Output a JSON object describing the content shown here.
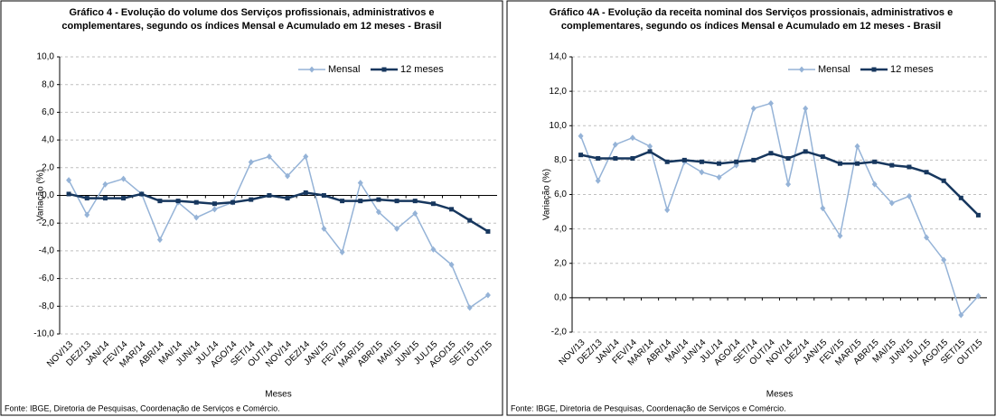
{
  "chart_data": [
    {
      "type": "line",
      "title": [
        "Gráfico 4 - Evolução do volume dos Serviços profissionais, administrativos e",
        "complementares, segundo os índices Mensal e Acumulado em 12 meses - Brasil"
      ],
      "ylabel": "Variação (%)",
      "xlabel": "Meses",
      "source": "Fonte: IBGE, Diretoria de Pesquisas, Coordenação de Serviços e Comércio.",
      "categories": [
        "NOV/13",
        "DEZ/13",
        "JAN/14",
        "FEV/14",
        "MAR/14",
        "ABR/14",
        "MAI/14",
        "JUN/14",
        "JUL/14",
        "AGO/14",
        "SET/14",
        "OUT/14",
        "NOV/14",
        "DEZ/14",
        "JAN/15",
        "FEV/15",
        "MAR/15",
        "ABR/15",
        "MAI/15",
        "JUN/15",
        "JUL/15",
        "AGO/15",
        "SET/15",
        "OUT/15"
      ],
      "series": [
        {
          "name": "Mensal",
          "color": "#95b3d7",
          "values": [
            1.1,
            -1.4,
            0.8,
            1.2,
            0.1,
            -3.2,
            -0.5,
            -1.6,
            -1.0,
            -0.5,
            2.4,
            2.8,
            1.4,
            2.8,
            -2.4,
            -4.1,
            0.9,
            -1.2,
            -2.4,
            -1.3,
            -3.9,
            -5.0,
            -8.1,
            -7.2
          ]
        },
        {
          "name": "12 meses",
          "color": "#17375e",
          "values": [
            0.1,
            -0.2,
            -0.2,
            -0.2,
            0.1,
            -0.4,
            -0.4,
            -0.5,
            -0.6,
            -0.5,
            -0.3,
            0.0,
            -0.2,
            0.2,
            0.0,
            -0.4,
            -0.4,
            -0.3,
            -0.4,
            -0.4,
            -0.6,
            -1.0,
            -1.8,
            -2.6
          ]
        }
      ],
      "ylim": [
        -10,
        10
      ],
      "yticks": [
        {
          "value": 10,
          "label": "10,0"
        },
        {
          "value": 8,
          "label": "8,0"
        },
        {
          "value": 6,
          "label": "6,0"
        },
        {
          "value": 4,
          "label": "4,0"
        },
        {
          "value": 2,
          "label": "2,0"
        },
        {
          "value": 0,
          "label": "0,0"
        },
        {
          "value": -2,
          "label": "-2,0"
        },
        {
          "value": -4,
          "label": "-4,0"
        },
        {
          "value": -6,
          "label": "-6,0"
        },
        {
          "value": -8,
          "label": "-8,0"
        },
        {
          "value": -10,
          "label": "-10,0"
        }
      ],
      "grid": true,
      "legend": "upper right"
    },
    {
      "type": "line",
      "title": [
        "Gráfico 4A - Evolução da receita nominal dos Serviços prossionais, administrativos e",
        "complementares, segundo os índices Mensal e Acumulado em 12 meses - Brasil"
      ],
      "ylabel": "Variação (%)",
      "xlabel": "Meses",
      "source": "Fonte: IBGE, Diretoria de Pesquisas, Coordenação de Serviços e Comércio.",
      "categories": [
        "NOV/13",
        "DEZ/13",
        "JAN/14",
        "FEV/14",
        "MAR/14",
        "ABR/14",
        "MAI/14",
        "JUN/14",
        "JUL/14",
        "AGO/14",
        "SET/14",
        "OUT/14",
        "NOV/14",
        "DEZ/14",
        "JAN/15",
        "FEV/15",
        "MAR/15",
        "ABR/15",
        "MAI/15",
        "JUN/15",
        "JUL/15",
        "AGO/15",
        "SET/15",
        "OUT/15"
      ],
      "series": [
        {
          "name": "Mensal",
          "color": "#95b3d7",
          "values": [
            9.4,
            6.8,
            8.9,
            9.3,
            8.8,
            5.1,
            7.9,
            7.3,
            7.0,
            7.7,
            11.0,
            11.3,
            6.6,
            11.0,
            5.2,
            3.6,
            8.8,
            6.6,
            5.5,
            5.9,
            3.5,
            2.2,
            -1.0,
            0.1
          ]
        },
        {
          "name": "12 meses",
          "color": "#17375e",
          "values": [
            8.3,
            8.1,
            8.1,
            8.1,
            8.5,
            7.9,
            8.0,
            7.9,
            7.8,
            7.9,
            8.0,
            8.4,
            8.1,
            8.5,
            8.2,
            7.8,
            7.8,
            7.9,
            7.7,
            7.6,
            7.3,
            6.8,
            5.8,
            4.8
          ]
        }
      ],
      "ylim": [
        -2,
        14
      ],
      "yticks": [
        {
          "value": 14,
          "label": "14,0"
        },
        {
          "value": 12,
          "label": "12,0"
        },
        {
          "value": 10,
          "label": "10,0"
        },
        {
          "value": 8,
          "label": "8,0"
        },
        {
          "value": 6,
          "label": "6,0"
        },
        {
          "value": 4,
          "label": "4,0"
        },
        {
          "value": 2,
          "label": "2,0"
        },
        {
          "value": 0,
          "label": "0,0"
        },
        {
          "value": -2,
          "label": "-2,0"
        }
      ],
      "grid": true,
      "legend": "upper right"
    }
  ]
}
